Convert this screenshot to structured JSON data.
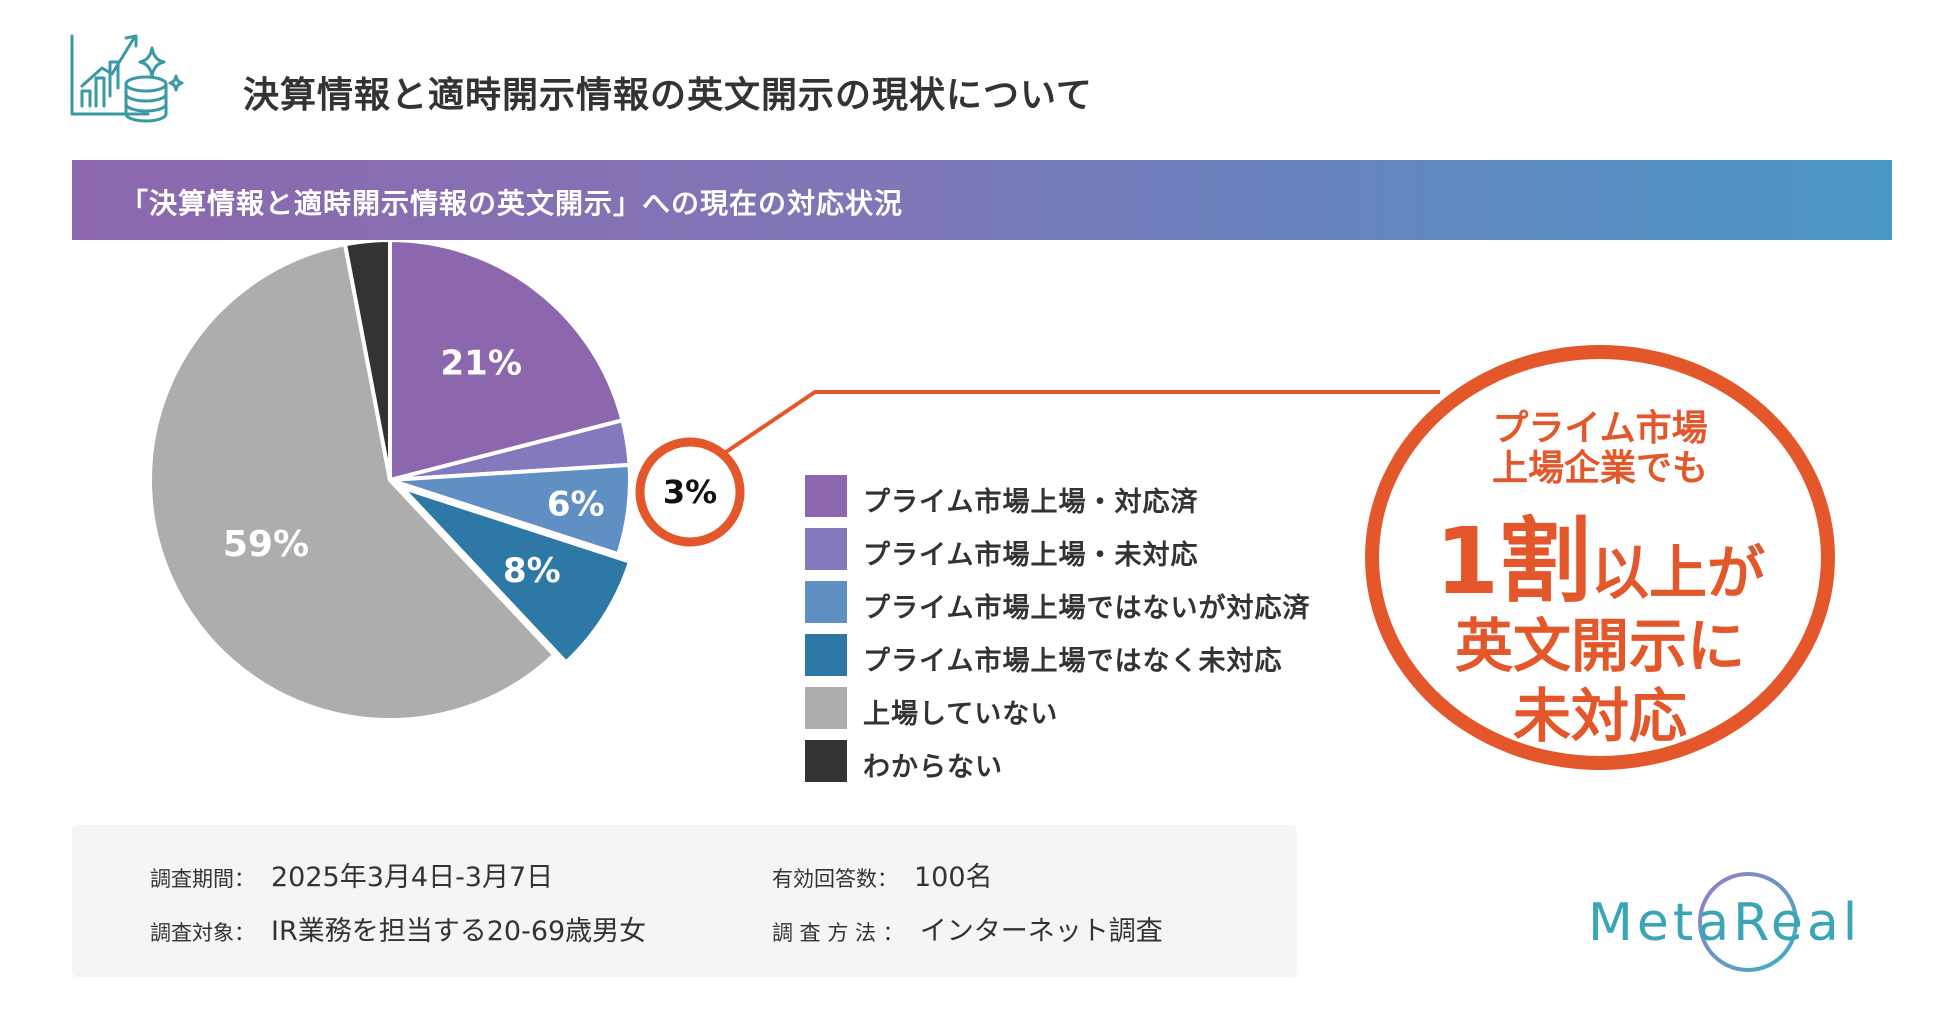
{
  "header": {
    "title": "決算情報と適時開示情報の英文開示の現状について"
  },
  "banner": {
    "text": "「決算情報と適時開示情報の英文開示」への現在の対応状況"
  },
  "chart_data": {
    "type": "pie",
    "slices": [
      {
        "label": "プライム市場上場・対応済",
        "value": 21,
        "display": "21%",
        "color": "#8d67ad"
      },
      {
        "label": "プライム市場上場・未対応",
        "value": 3,
        "display": "3%",
        "color": "#8479bd"
      },
      {
        "label": "プライム市場上場ではないが対応済",
        "value": 6,
        "display": "6%",
        "color": "#5f8fc3"
      },
      {
        "label": "プライム市場上場ではなく未対応",
        "value": 8,
        "display": "8%",
        "color": "#2e78a6"
      },
      {
        "label": "上場していない",
        "value": 59,
        "display": "59%",
        "color": "#adadad"
      },
      {
        "label": "わからない",
        "value": 3,
        "display": "3%",
        "color": "#333333"
      }
    ]
  },
  "callout": {
    "line1": "プライム市場",
    "line2": "上場企業でも",
    "big_number": "1割",
    "big_rest": "以上が",
    "line4": "英文開示に",
    "line5": "未対応",
    "color": "#e3572a"
  },
  "survey": {
    "period_label": "調査期間：",
    "period_value": "2025年3月4日-3月7日",
    "target_label": "調査対象：",
    "target_value": "IR業務を担当する20-69歳男女",
    "responses_label": "有効回答数：",
    "responses_value": "100名",
    "method_label": "調 査 方 法 ：",
    "method_value": "インターネット調査"
  },
  "logo": {
    "text": "MetaReal"
  },
  "icons": {
    "header_icon": "growth-chart-coins-icon"
  }
}
